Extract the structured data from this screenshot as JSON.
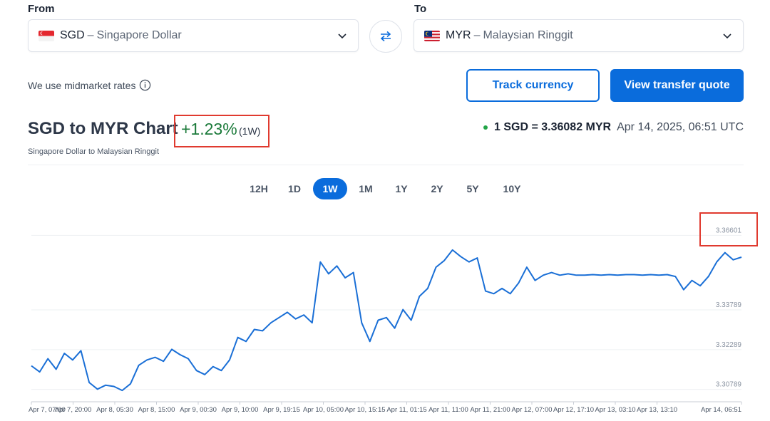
{
  "converter": {
    "from_label": "From",
    "to_label": "To",
    "from": {
      "code": "SGD",
      "sep": "–",
      "name": "Singapore Dollar",
      "flag": "singapore-flag"
    },
    "to": {
      "code": "MYR",
      "sep": "–",
      "name": "Malaysian Ringgit",
      "flag": "malaysia-flag"
    },
    "swap_icon": "swap-arrows-icon"
  },
  "info": {
    "midmarket_text": "We use midmarket rates"
  },
  "actions": {
    "track_label": "Track currency",
    "quote_label": "View transfer quote"
  },
  "chart_header": {
    "title": "SGD to MYR Chart",
    "change_pct": "+1.23%",
    "change_period": "(1W)",
    "subtitle": "Singapore Dollar to Malaysian Ringgit",
    "rate_text": "1 SGD = 3.36082 MYR",
    "rate_time": "Apr 14, 2025, 06:51 UTC"
  },
  "ranges": [
    {
      "label": "12H",
      "active": false
    },
    {
      "label": "1D",
      "active": false
    },
    {
      "label": "1W",
      "active": true
    },
    {
      "label": "1M",
      "active": false
    },
    {
      "label": "1Y",
      "active": false
    },
    {
      "label": "2Y",
      "active": false
    },
    {
      "label": "5Y",
      "active": false
    },
    {
      "label": "10Y",
      "active": false
    }
  ],
  "colors": {
    "accent": "#0a6cdc",
    "positive": "#1b7a3a",
    "line": "#1a6fd6",
    "highlight": "#e03a2f"
  },
  "chart_data": {
    "type": "line",
    "title": "SGD to MYR Chart",
    "y_ticks": [
      "3.36601",
      "3.33789",
      "3.32289",
      "3.30789"
    ],
    "x_ticks": [
      "Apr 7, 07:00",
      "Apr 7, 20:00",
      "Apr 8, 05:30",
      "Apr 8, 15:00",
      "Apr 9, 00:30",
      "Apr 9, 10:00",
      "Apr 9, 19:15",
      "Apr 10, 05:00",
      "Apr 10, 15:15",
      "Apr 11, 01:15",
      "Apr 11, 11:00",
      "Apr 11, 21:00",
      "Apr 12, 07:00",
      "Apr 12, 17:10",
      "Apr 13, 03:10",
      "Apr 13, 13:10",
      "Apr 14, 06:51"
    ],
    "ylim": [
      3.3035,
      3.3715
    ],
    "grid": true,
    "series": [
      {
        "values": [
          3.3168,
          3.3145,
          3.3195,
          3.3155,
          3.3215,
          3.319,
          3.3225,
          3.3105,
          3.308,
          3.3095,
          3.309,
          3.3075,
          3.31,
          3.317,
          3.319,
          3.32,
          3.3185,
          3.323,
          3.321,
          3.3195,
          3.315,
          3.3135,
          3.3165,
          3.315,
          3.319,
          3.3275,
          3.326,
          3.3305,
          3.33,
          3.333,
          3.335,
          3.337,
          3.3345,
          3.336,
          3.333,
          3.356,
          3.3515,
          3.3545,
          3.35,
          3.352,
          3.333,
          3.326,
          3.334,
          3.335,
          3.331,
          3.338,
          3.334,
          3.343,
          3.346,
          3.354,
          3.3565,
          3.3605,
          3.358,
          3.356,
          3.3575,
          3.345,
          3.344,
          3.346,
          3.344,
          3.348,
          3.354,
          3.349,
          3.351,
          3.352,
          3.351,
          3.3515,
          3.351,
          3.351,
          3.3512,
          3.351,
          3.3512,
          3.351,
          3.3512,
          3.3512,
          3.351,
          3.3512,
          3.351,
          3.3512,
          3.3505,
          3.3455,
          3.349,
          3.347,
          3.3505,
          3.356,
          3.3595,
          3.3568,
          3.3578
        ]
      }
    ]
  }
}
